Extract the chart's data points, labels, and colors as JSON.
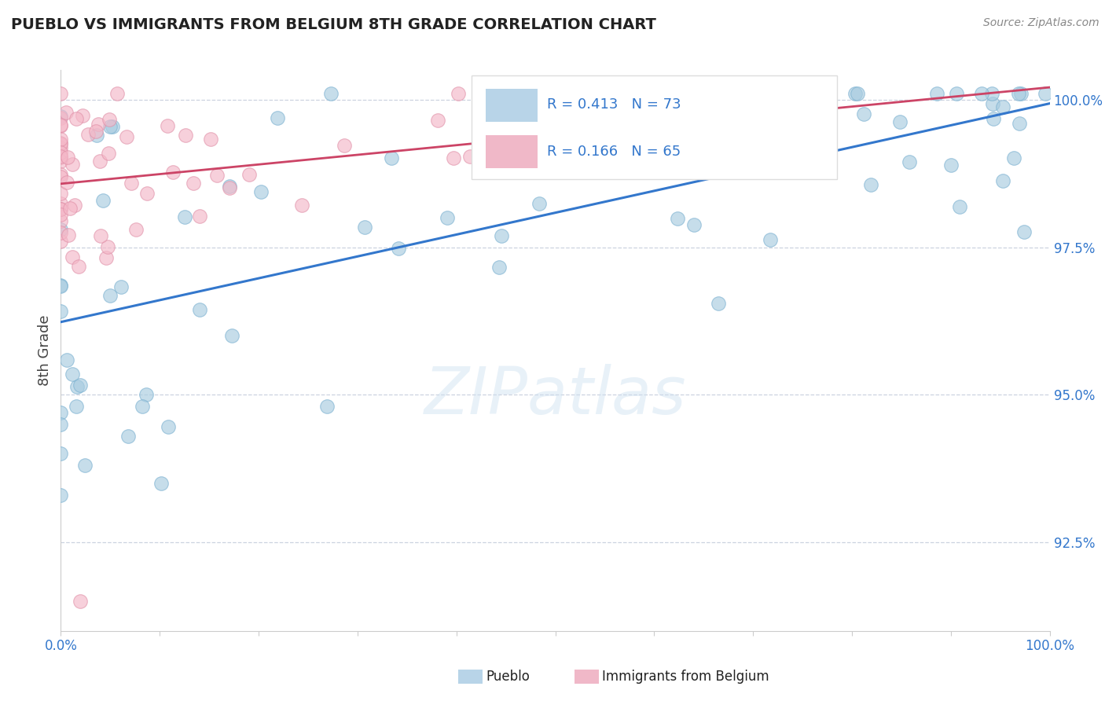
{
  "title": "PUEBLO VS IMMIGRANTS FROM BELGIUM 8TH GRADE CORRELATION CHART",
  "source": "Source: ZipAtlas.com",
  "ylabel": "8th Grade",
  "xmin": 0.0,
  "xmax": 1.0,
  "ymin": 0.91,
  "ymax": 1.005,
  "yticks": [
    0.925,
    0.95,
    0.975,
    1.0
  ],
  "ytick_labels": [
    "92.5%",
    "95.0%",
    "97.5%",
    "100.0%"
  ],
  "xticks": [
    0.0,
    0.1,
    0.2,
    0.3,
    0.4,
    0.5,
    0.6,
    0.7,
    0.8,
    0.9,
    1.0
  ],
  "xtick_labels_show": [
    "0.0%",
    "",
    "",
    "",
    "",
    "",
    "",
    "",
    "",
    "",
    "100.0%"
  ],
  "legend_blue_r": "R = 0.413",
  "legend_blue_n": "N = 73",
  "legend_pink_r": "R = 0.166",
  "legend_pink_n": "N = 65",
  "blue_scatter_color": "#a8cce0",
  "blue_edge_color": "#7ab0d0",
  "pink_scatter_color": "#f4b8c8",
  "pink_edge_color": "#e090a8",
  "trend_blue_color": "#3377cc",
  "trend_pink_color": "#cc4466",
  "bottom_legend_blue": "Pueblo",
  "bottom_legend_pink": "Immigrants from Belgium",
  "watermark_text": "ZIPatlas",
  "background_color": "#ffffff",
  "grid_color": "#c0c8d8",
  "tick_color": "#3377cc",
  "title_color": "#222222",
  "source_color": "#888888",
  "ylabel_color": "#444444"
}
